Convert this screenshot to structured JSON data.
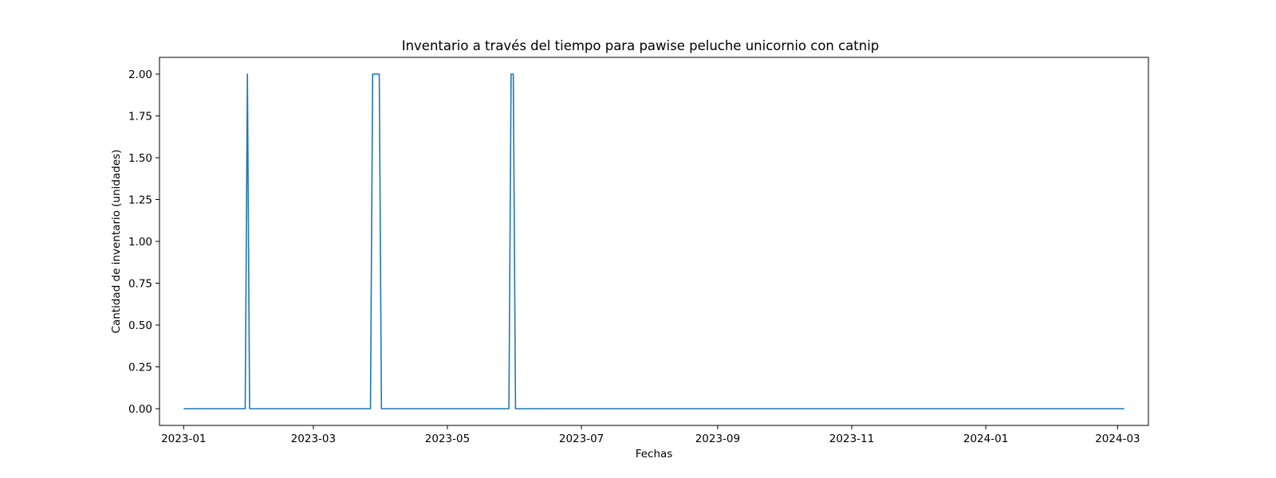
{
  "chart_data": {
    "type": "line",
    "title": "Inventario a través del tiempo para pawise peluche unicornio con catnip",
    "xlabel": "Fechas",
    "ylabel": "Cantidad de inventario (unidades)",
    "x_axis_type": "date",
    "xlim": [
      "2022-12-21",
      "2024-03-15"
    ],
    "ylim": [
      -0.1,
      2.1
    ],
    "x_ticks": [
      "2023-01-01",
      "2023-03-01",
      "2023-05-01",
      "2023-07-01",
      "2023-09-01",
      "2023-11-01",
      "2024-01-01",
      "2024-03-01"
    ],
    "x_tick_labels": [
      "2023-01",
      "2023-03",
      "2023-05",
      "2023-07",
      "2023-09",
      "2023-11",
      "2024-01",
      "2024-03"
    ],
    "y_ticks": [
      0.0,
      0.25,
      0.5,
      0.75,
      1.0,
      1.25,
      1.5,
      1.75,
      2.0
    ],
    "y_tick_labels": [
      "0.00",
      "0.25",
      "0.50",
      "0.75",
      "1.00",
      "1.25",
      "1.50",
      "1.75",
      "2.00"
    ],
    "grid": false,
    "series": [
      {
        "color": "#1f77b4",
        "x": [
          "2023-01-01",
          "2023-01-29",
          "2023-01-30",
          "2023-01-31",
          "2023-03-27",
          "2023-03-28",
          "2023-03-31",
          "2023-04-01",
          "2023-05-29",
          "2023-05-30",
          "2023-05-31",
          "2023-06-01",
          "2024-03-04"
        ],
        "y": [
          0,
          0,
          2,
          0,
          0,
          2,
          2,
          0,
          0,
          2,
          2,
          0,
          0
        ]
      }
    ]
  }
}
